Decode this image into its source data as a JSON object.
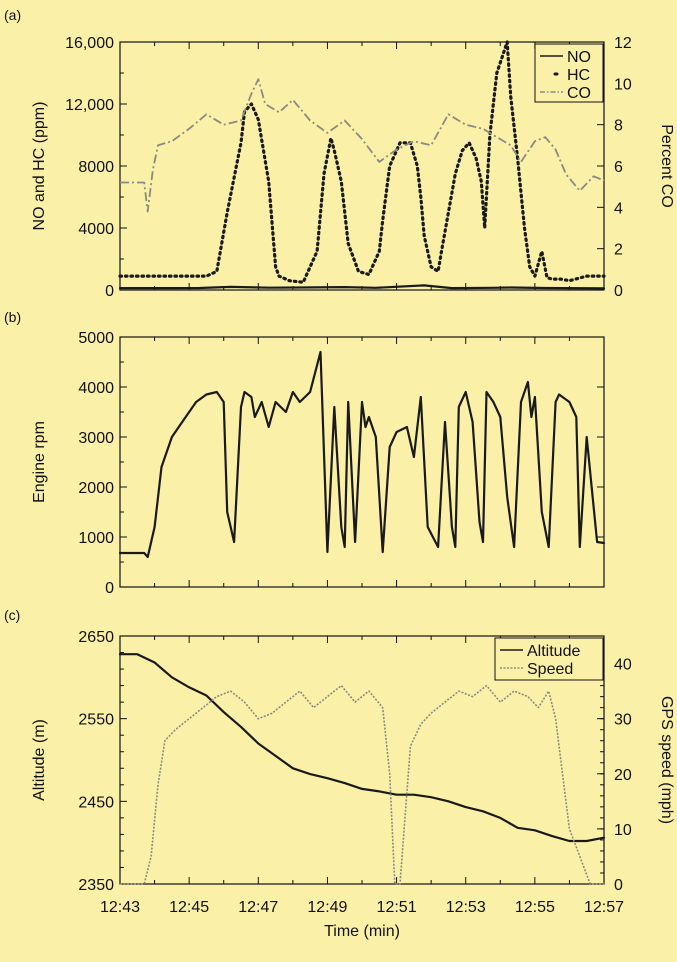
{
  "colors": {
    "background": "#fbf0a8",
    "axis": "#111111",
    "dark_series": "#1a1a1a",
    "gray_series": "#8a8a82"
  },
  "chart_data": [
    {
      "type": "line",
      "panel_label": "(a)",
      "ylabel": "NO and HC (ppm)",
      "y2label": "Percent CO",
      "ylim": [
        0,
        16000
      ],
      "y2lim": [
        0,
        12
      ],
      "yticks": [
        "0",
        "4000",
        "8000",
        "12,000",
        "16,000"
      ],
      "y2ticks": [
        "0",
        "2",
        "4",
        "6",
        "8",
        "10",
        "12"
      ],
      "legend": {
        "position": "top-right",
        "entries": [
          "NO",
          "HC",
          "CO"
        ]
      },
      "series": [
        {
          "name": "NO",
          "style": "solid",
          "axis": "left",
          "x": [
            0,
            1.6,
            2.3,
            3.2,
            4.3,
            5.2,
            6.5,
            7.4,
            8.8,
            9.6,
            10.8,
            11.3,
            12.3,
            14
          ],
          "y": [
            120,
            120,
            130,
            200,
            150,
            160,
            190,
            140,
            300,
            120,
            140,
            160,
            130,
            100
          ]
        },
        {
          "name": "HC",
          "style": "dots",
          "axis": "left",
          "x": [
            0,
            0.5,
            1.5,
            2.5,
            2.8,
            3.1,
            3.5,
            3.6,
            3.8,
            4.0,
            4.3,
            4.5,
            4.6,
            4.9,
            5.3,
            5.7,
            5.9,
            6.1,
            6.2,
            6.4,
            6.6,
            6.9,
            7.2,
            7.5,
            7.6,
            7.8,
            8.1,
            8.4,
            8.6,
            8.7,
            8.8,
            9.0,
            9.2,
            9.3,
            9.5,
            9.7,
            9.9,
            10.1,
            10.3,
            10.45,
            10.55,
            10.7,
            10.9,
            11.2,
            11.3,
            11.5,
            11.7,
            11.85,
            12.0,
            12.2,
            12.35,
            12.5,
            12.75,
            13.0,
            13.5,
            14
          ],
          "y": [
            900,
            900,
            900,
            900,
            1200,
            5000,
            9500,
            11500,
            12000,
            11000,
            7000,
            1500,
            900,
            600,
            500,
            2500,
            7500,
            9800,
            9000,
            7000,
            3000,
            1200,
            1000,
            2500,
            4500,
            8000,
            9500,
            9500,
            8000,
            6000,
            3500,
            1500,
            1200,
            2500,
            5000,
            7500,
            9000,
            9500,
            8500,
            7000,
            4000,
            10000,
            14000,
            16000,
            12500,
            8500,
            4000,
            1500,
            900,
            2500,
            800,
            700,
            700,
            600,
            900,
            900
          ]
        },
        {
          "name": "CO",
          "style": "dash-dot",
          "axis": "right",
          "x": [
            0,
            0.7,
            0.8,
            0.95,
            1.1,
            1.5,
            2.0,
            2.5,
            3.0,
            3.5,
            3.8,
            4.0,
            4.2,
            4.6,
            5.0,
            5.5,
            6.0,
            6.5,
            7.0,
            7.5,
            8.0,
            8.5,
            9.0,
            9.5,
            10.0,
            10.5,
            11.0,
            11.3,
            11.6,
            12.0,
            12.3,
            12.6,
            12.9,
            13.3,
            13.7,
            14
          ],
          "y": [
            5.2,
            5.2,
            3.8,
            5.8,
            7.0,
            7.2,
            7.8,
            8.5,
            8.0,
            8.2,
            9.5,
            10.2,
            9.0,
            8.6,
            9.2,
            8.2,
            7.6,
            8.2,
            7.3,
            6.2,
            6.8,
            7.2,
            7.0,
            8.5,
            8.0,
            7.8,
            7.3,
            7.0,
            6.2,
            7.2,
            7.4,
            6.8,
            5.6,
            4.8,
            5.5,
            5.3
          ]
        }
      ]
    },
    {
      "type": "line",
      "panel_label": "(b)",
      "ylabel": "Engine rpm",
      "ylim": [
        0,
        5000
      ],
      "yticks": [
        "0",
        "1000",
        "2000",
        "3000",
        "4000",
        "5000"
      ],
      "series": [
        {
          "style": "solid",
          "x": [
            0,
            0.7,
            0.8,
            1.0,
            1.2,
            1.5,
            1.8,
            2.2,
            2.5,
            2.8,
            3.0,
            3.1,
            3.3,
            3.5,
            3.6,
            3.8,
            3.9,
            4.1,
            4.3,
            4.5,
            4.8,
            5.0,
            5.2,
            5.5,
            5.8,
            6.0,
            6.2,
            6.4,
            6.5,
            6.6,
            6.8,
            7.0,
            7.1,
            7.2,
            7.4,
            7.6,
            7.8,
            8.0,
            8.3,
            8.5,
            8.7,
            8.9,
            9.2,
            9.4,
            9.6,
            9.7,
            9.8,
            10.0,
            10.2,
            10.4,
            10.5,
            10.6,
            10.8,
            11.0,
            11.2,
            11.4,
            11.6,
            11.8,
            11.9,
            12.0,
            12.2,
            12.4,
            12.6,
            12.7,
            12.8,
            13.0,
            13.2,
            13.3,
            13.5,
            13.8,
            14
          ],
          "y": [
            680,
            680,
            600,
            1200,
            2400,
            3000,
            3300,
            3700,
            3850,
            3900,
            3700,
            1500,
            900,
            3600,
            3900,
            3800,
            3400,
            3700,
            3200,
            3700,
            3500,
            3900,
            3700,
            3900,
            4700,
            700,
            3600,
            1200,
            800,
            3700,
            900,
            3700,
            3200,
            3400,
            3000,
            700,
            2800,
            3100,
            3200,
            2600,
            3800,
            1200,
            800,
            3300,
            1200,
            800,
            3600,
            3900,
            3300,
            1300,
            900,
            3900,
            3700,
            3400,
            1800,
            800,
            3700,
            4100,
            3400,
            3800,
            1500,
            800,
            3700,
            3850,
            3800,
            3700,
            3400,
            800,
            3000,
            900,
            880
          ]
        }
      ]
    },
    {
      "type": "line",
      "panel_label": "(c)",
      "xlabel": "Time (min)",
      "ylabel": "Altitude (m)",
      "y2label": "GPS speed (mph)",
      "ylim": [
        2350,
        2650
      ],
      "y2lim": [
        0,
        45
      ],
      "yticks": [
        "2350",
        "2450",
        "2550",
        "2650"
      ],
      "y2ticks": [
        "0",
        "10",
        "20",
        "30",
        "40"
      ],
      "x_range": [
        0,
        14
      ],
      "xticks": [
        "12:43",
        "12:45",
        "12:47",
        "12:49",
        "12:51",
        "12:53",
        "12:55",
        "12:57"
      ],
      "legend": {
        "position": "top-right",
        "entries": [
          "Altitude",
          "Speed"
        ]
      },
      "series": [
        {
          "name": "Altitude",
          "style": "solid",
          "axis": "left",
          "x": [
            0,
            0.5,
            1.0,
            1.5,
            2.0,
            2.5,
            3.0,
            3.5,
            4.0,
            4.5,
            5.0,
            5.5,
            6.0,
            6.5,
            7.0,
            7.5,
            8.0,
            8.5,
            9.0,
            9.5,
            10.0,
            10.5,
            11.0,
            11.5,
            12.0,
            12.5,
            13.0,
            13.5,
            14
          ],
          "y": [
            2628,
            2628,
            2618,
            2600,
            2588,
            2578,
            2558,
            2540,
            2520,
            2505,
            2490,
            2483,
            2478,
            2472,
            2465,
            2462,
            2458,
            2458,
            2455,
            2450,
            2443,
            2438,
            2430,
            2418,
            2415,
            2408,
            2402,
            2402,
            2406
          ]
        },
        {
          "name": "Speed",
          "style": "dotted",
          "axis": "right",
          "x": [
            0,
            0.7,
            0.9,
            1.1,
            1.3,
            1.6,
            2.0,
            2.4,
            2.8,
            3.2,
            3.6,
            4.0,
            4.4,
            4.8,
            5.2,
            5.6,
            6.0,
            6.4,
            6.8,
            7.2,
            7.6,
            7.8,
            7.95,
            8.1,
            8.4,
            8.7,
            9.0,
            9.4,
            9.8,
            10.2,
            10.6,
            11.0,
            11.4,
            11.8,
            12.1,
            12.4,
            12.6,
            12.8,
            13.0,
            13.3,
            13.6,
            14
          ],
          "y": [
            0,
            0,
            5,
            18,
            26,
            28,
            30,
            32,
            34,
            35,
            33,
            30,
            31,
            33,
            35,
            32,
            34,
            36,
            33,
            35,
            32,
            20,
            0,
            0,
            25,
            29,
            31,
            33,
            35,
            34,
            36,
            33,
            35,
            34,
            32,
            35,
            30,
            20,
            10,
            5,
            0,
            0
          ]
        }
      ]
    }
  ]
}
